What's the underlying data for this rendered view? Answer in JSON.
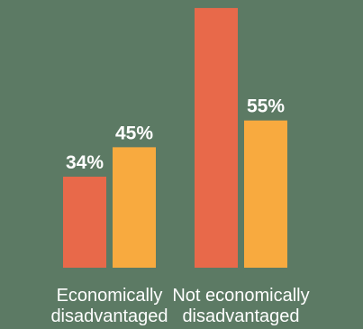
{
  "chart_data": {
    "type": "bar",
    "categories": [
      [
        "Economically",
        "disadvantaged"
      ],
      [
        "Not economically",
        "disadvantaged"
      ]
    ],
    "series": [
      {
        "color": "#e8694a",
        "values": [
          34,
          97
        ]
      },
      {
        "color": "#f8aa3f",
        "values": [
          45,
          55
        ]
      }
    ],
    "data_labels": [
      [
        "34%",
        "45%"
      ],
      [
        "",
        "55%"
      ]
    ],
    "ylim": [
      0,
      100
    ],
    "title": "",
    "xlabel": "",
    "ylabel": "",
    "grid": false,
    "legend": "none"
  },
  "colors": {
    "background": "#5c7a64",
    "label_text": "#ffffff"
  }
}
